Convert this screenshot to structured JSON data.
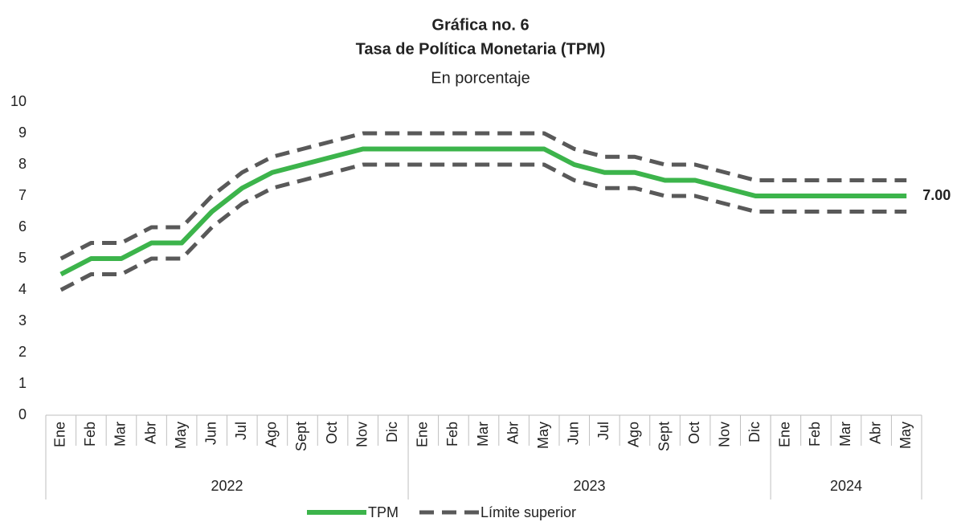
{
  "chart_data": {
    "type": "line",
    "title": "Gráfica no. 6",
    "subtitle": "Tasa de Política Monetaria (TPM)",
    "unit_label": "En porcentaje",
    "categories": [
      "Ene",
      "Feb",
      "Mar",
      "Abr",
      "May",
      "Jun",
      "Jul",
      "Ago",
      "Sept",
      "Oct",
      "Nov",
      "Dic",
      "Ene",
      "Feb",
      "Mar",
      "Abr",
      "May",
      "Jun",
      "Jul",
      "Ago",
      "Sept",
      "Oct",
      "Nov",
      "Dic",
      "Ene",
      "Feb",
      "Mar",
      "Abr",
      "May"
    ],
    "groups": [
      {
        "label": "2022",
        "size": 12
      },
      {
        "label": "2023",
        "size": 12
      },
      {
        "label": "2024",
        "size": 5
      }
    ],
    "series": [
      {
        "name": "TPM",
        "color": "#3cb44b",
        "style": "solid",
        "values": [
          4.5,
          5,
          5,
          5.5,
          5.5,
          6.5,
          7.25,
          7.75,
          8,
          8.25,
          8.5,
          8.5,
          8.5,
          8.5,
          8.5,
          8.5,
          8.5,
          8,
          7.75,
          7.75,
          7.5,
          7.5,
          7.25,
          7,
          7,
          7,
          7,
          7,
          7
        ],
        "value_labels": [
          null,
          null,
          null,
          null,
          null,
          null,
          null,
          null,
          null,
          null,
          null,
          null,
          null,
          null,
          null,
          null,
          null,
          null,
          null,
          null,
          null,
          null,
          null,
          null,
          null,
          null,
          null,
          null,
          "7.00"
        ]
      },
      {
        "name": "Límite superior",
        "color": "#595959",
        "style": "dashed",
        "values": [
          5,
          5.5,
          5.5,
          6,
          6,
          7,
          7.75,
          8.25,
          8.5,
          8.75,
          9,
          9,
          9,
          9,
          9,
          9,
          9,
          8.5,
          8.25,
          8.25,
          8,
          8,
          7.75,
          7.5,
          7.5,
          7.5,
          7.5,
          7.5,
          7.5
        ]
      },
      {
        "color": "#595959",
        "style": "dashed",
        "values": [
          4,
          4.5,
          4.5,
          5,
          5,
          6,
          6.75,
          7.25,
          7.5,
          7.75,
          8,
          8,
          8,
          8,
          8,
          8,
          8,
          7.5,
          7.25,
          7.25,
          7,
          7,
          6.75,
          6.5,
          6.5,
          6.5,
          6.5,
          6.5,
          6.5
        ]
      }
    ],
    "ylim": [
      0,
      10
    ],
    "yticks": [
      0,
      1,
      2,
      3,
      4,
      5,
      6,
      7,
      8,
      9,
      10
    ],
    "grid": false,
    "legend": "bottom"
  }
}
